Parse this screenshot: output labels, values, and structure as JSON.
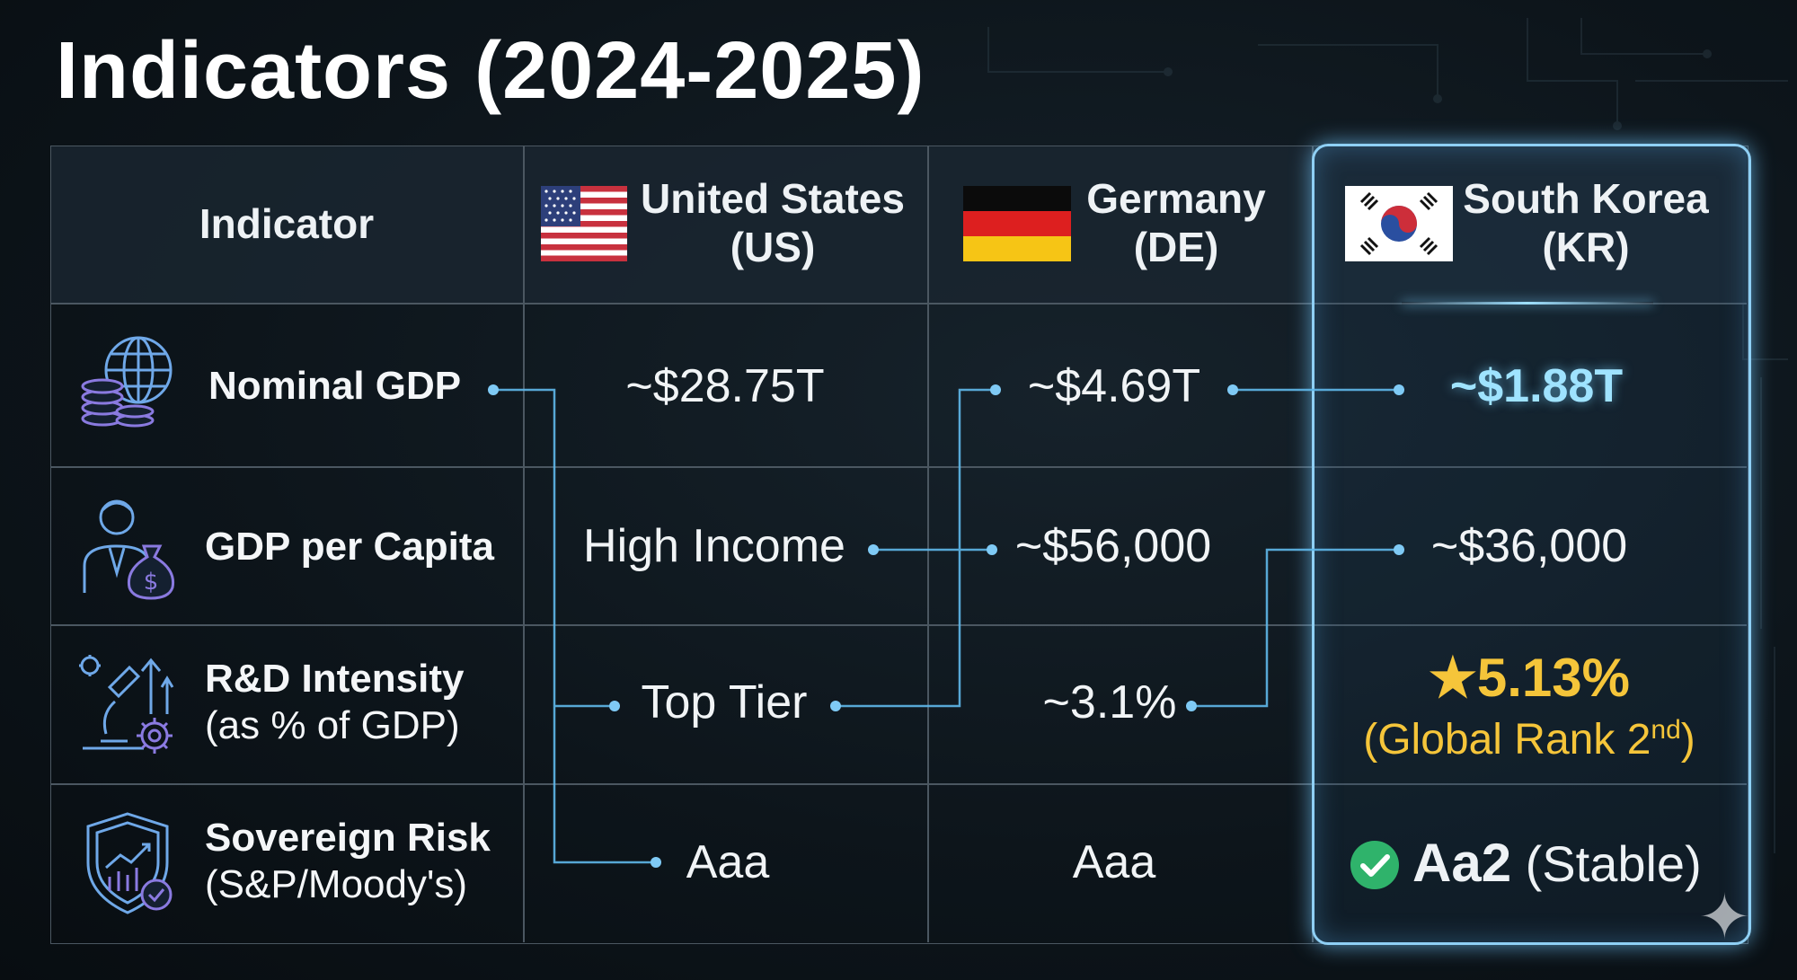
{
  "title": "Indicators (2024-2025)",
  "header": {
    "indicator": "Indicator",
    "columns": [
      {
        "name": "United States",
        "code": "(US)",
        "flag": "us-flag"
      },
      {
        "name": "Germany",
        "code": "(DE)",
        "flag": "de-flag"
      },
      {
        "name": "South Korea",
        "code": "(KR)",
        "flag": "kr-flag"
      }
    ]
  },
  "rows": [
    {
      "label": "Nominal GDP",
      "sub": "",
      "icon": "globe-coins-icon",
      "values": [
        "~$28.75T",
        "~$4.69T",
        "~$1.88T"
      ]
    },
    {
      "label": "GDP per Capita",
      "sub": "",
      "icon": "person-moneybag-icon",
      "values": [
        "High Income",
        "~$56,000",
        "~$36,000"
      ]
    },
    {
      "label": "R&D Intensity",
      "sub": "(as % of GDP)",
      "icon": "microscope-gears-icon",
      "values": [
        "Top Tier",
        "~3.1%"
      ],
      "kr": {
        "star": "★",
        "value": "5.13%",
        "rank_prefix": "(Global Rank 2",
        "rank_sup": "nd",
        "rank_suffix": ")"
      }
    },
    {
      "label": "Sovereign Risk",
      "sub": "(S&P/Moody's)",
      "icon": "shield-chart-icon",
      "values": [
        "Aaa",
        "Aaa"
      ],
      "kr": {
        "rating": "Aa2",
        "outlook": "(Stable)",
        "check": "check-icon"
      }
    }
  ],
  "colors": {
    "accent": "#8fd0f5",
    "highlight": "#9fe3ff",
    "gold": "#f5c53a",
    "check": "#2fb36b"
  }
}
